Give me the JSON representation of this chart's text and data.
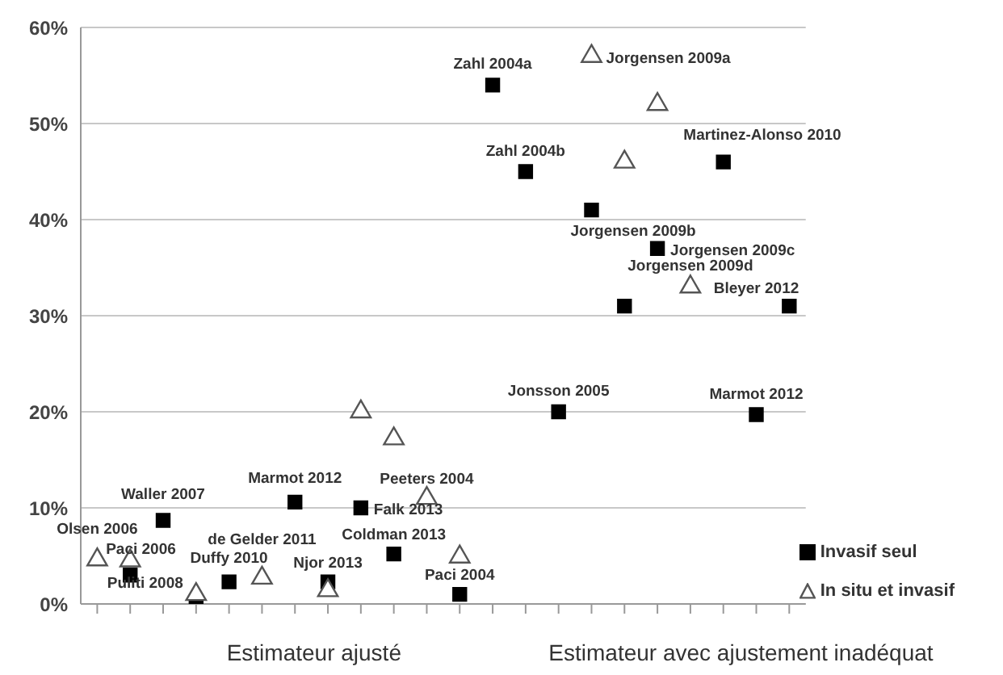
{
  "chart_data": {
    "type": "scatter",
    "categories": [
      null,
      null,
      null,
      null,
      null,
      null,
      null,
      null,
      null,
      null,
      null,
      null,
      null,
      null,
      null,
      null,
      null,
      null,
      null,
      null,
      null,
      null
    ],
    "series": [
      {
        "name": "Invasif seul",
        "color": "#000000",
        "marker": "square",
        "values": [
          null,
          3,
          8.7,
          0,
          2.3,
          null,
          10.6,
          2.3,
          10,
          5.2,
          null,
          1,
          54,
          45,
          20,
          41,
          31,
          37,
          null,
          46,
          19.7,
          31
        ],
        "value_labels": [
          null,
          "Paci 2006",
          "Waller 2007",
          "Puliti 2008",
          "Duffy 2010",
          null,
          "Marmot 2012",
          "Njor 2013",
          "Falk 2013",
          "Coldman 2013",
          null,
          "Paci 2004",
          "Zahl 2004a",
          "Zahl 2004b",
          "Jonsson 2005",
          "Jorgensen 2009b",
          null,
          "Jorgensen 2009c",
          null,
          "Martinez-Alonso 2010",
          "Marmot 2012",
          "Bleyer 2012"
        ]
      },
      {
        "name": "In situ et invasif",
        "color": "#555555",
        "marker": "triangle",
        "values": [
          4.6,
          4.5,
          null,
          1,
          null,
          2.7,
          null,
          1.4,
          20,
          17.2,
          11,
          4.9,
          null,
          null,
          null,
          57,
          46,
          52,
          33,
          null,
          null,
          null
        ],
        "value_labels": [
          "Olsen 2006",
          null,
          null,
          null,
          null,
          "de Gelder 2011",
          null,
          null,
          null,
          null,
          "Peeters 2004",
          null,
          null,
          null,
          null,
          "Jorgensen 2009a",
          null,
          null,
          "Jorgensen 2009d",
          null,
          null,
          null
        ]
      }
    ],
    "ylim": [
      0,
      60
    ],
    "yticks": [
      {
        "value": 0,
        "label": "0%"
      },
      {
        "value": 10,
        "label": "10%"
      },
      {
        "value": 20,
        "label": "20%"
      },
      {
        "value": 30,
        "label": "30%"
      },
      {
        "value": 40,
        "label": "40%"
      },
      {
        "value": 50,
        "label": "50%"
      },
      {
        "value": 60,
        "label": "60%"
      }
    ],
    "grid": "y",
    "legend": "bottom right",
    "annotations": [
      "Estimateur ajusté",
      "Estimateur avec ajustement inadéquat"
    ]
  }
}
